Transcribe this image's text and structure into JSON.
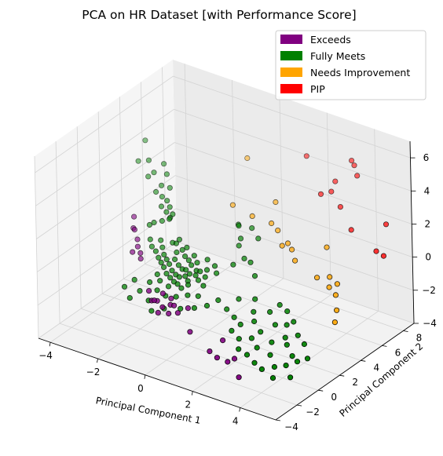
{
  "chart_data": {
    "type": "scatter3d",
    "title": "PCA on HR Dataset [with Performance Score]",
    "xlabel": "Principal Component 1",
    "ylabel": "Principal Component 2",
    "zlabel": "",
    "xlim": [
      -4.5,
      5.5
    ],
    "ylim": [
      -4,
      9
    ],
    "zlim": [
      -4,
      7
    ],
    "xticks": [
      "−4",
      "−2",
      "0",
      "2",
      "4"
    ],
    "yticks": [
      "−4",
      "−2",
      "0",
      "2",
      "4",
      "6",
      "8"
    ],
    "zticks": [
      "−4",
      "−2",
      "0",
      "2",
      "4",
      "6"
    ],
    "grid": true,
    "legend": "top-right",
    "series": [
      {
        "name": "Exceeds",
        "color": "#800080",
        "points": [
          [
            -4.0,
            4.0,
            0.0
          ],
          [
            -3.9,
            3.7,
            -0.5
          ],
          [
            -3.8,
            3.6,
            -0.5
          ],
          [
            -3.6,
            3.4,
            -0.9
          ],
          [
            -3.5,
            3.2,
            -1.2
          ],
          [
            -3.3,
            3.0,
            -1.4
          ],
          [
            -3.2,
            2.8,
            -1.6
          ],
          [
            -3.5,
            2.7,
            -1.3
          ],
          [
            -1.6,
            0.0,
            -1.5
          ],
          [
            -1.4,
            -0.2,
            -1.9
          ],
          [
            -1.2,
            -0.4,
            -1.7
          ],
          [
            -1.0,
            -0.5,
            -2.3
          ],
          [
            -0.9,
            -0.3,
            -2.0
          ],
          [
            -0.7,
            0.0,
            -1.9
          ],
          [
            -0.5,
            -0.1,
            -1.8
          ],
          [
            -1.1,
            0.2,
            -1.5
          ],
          [
            -0.8,
            0.3,
            -1.7
          ],
          [
            -0.6,
            -0.4,
            -2.2
          ],
          [
            0.2,
            -0.2,
            -3.0
          ],
          [
            1.4,
            0.2,
            -3.1
          ],
          [
            1.2,
            -0.6,
            -3.5
          ],
          [
            1.6,
            -0.8,
            -3.6
          ],
          [
            2.0,
            -0.7,
            -3.7
          ],
          [
            2.2,
            -0.5,
            -3.5
          ],
          [
            2.6,
            -1.0,
            -4.2
          ],
          [
            -0.3,
            -0.2,
            -2.1
          ],
          [
            -1.3,
            0.1,
            -2.0
          ],
          [
            0.0,
            0.1,
            -1.8
          ]
        ]
      },
      {
        "name": "Fully Meets",
        "color": "#008000",
        "points": [
          [
            -4.6,
            6.5,
            3.2
          ],
          [
            -4.5,
            5.6,
            2.4
          ],
          [
            -4.1,
            5.7,
            2.6
          ],
          [
            -4.0,
            5.4,
            1.8
          ],
          [
            -3.8,
            5.5,
            2.1
          ],
          [
            -3.6,
            6.0,
            2.5
          ],
          [
            -3.4,
            5.3,
            1.6
          ],
          [
            -3.3,
            5.6,
            2.2
          ],
          [
            -3.5,
            5.0,
            1.3
          ],
          [
            -3.2,
            4.9,
            1.2
          ],
          [
            -3.0,
            5.2,
            1.7
          ],
          [
            -3.1,
            4.6,
            0.8
          ],
          [
            -2.9,
            4.7,
            1.2
          ],
          [
            -2.8,
            4.4,
            0.7
          ],
          [
            -2.7,
            4.5,
            1.0
          ],
          [
            -2.9,
            4.2,
            0.2
          ],
          [
            -2.6,
            4.3,
            0.5
          ],
          [
            -3.2,
            4.1,
            0.0
          ],
          [
            -3.3,
            3.9,
            -0.1
          ],
          [
            -2.5,
            4.0,
            0.6
          ],
          [
            -2.4,
            4.1,
            0.9
          ],
          [
            -2.2,
            3.6,
            -0.5
          ],
          [
            -2.0,
            3.5,
            -0.4
          ],
          [
            -1.9,
            3.3,
            -0.8
          ],
          [
            -1.7,
            3.4,
            -0.6
          ],
          [
            -1.5,
            3.2,
            -0.8
          ],
          [
            -1.3,
            3.1,
            -0.9
          ],
          [
            -1.8,
            2.9,
            -1.0
          ],
          [
            -1.6,
            2.8,
            -1.2
          ],
          [
            -1.4,
            2.7,
            -1.3
          ],
          [
            -1.2,
            2.6,
            -1.2
          ],
          [
            -1.1,
            2.9,
            -1.0
          ],
          [
            -2.1,
            2.8,
            -1.1
          ],
          [
            -2.3,
            3.0,
            -1.0
          ],
          [
            -0.9,
            3.0,
            -0.8
          ],
          [
            -0.8,
            2.7,
            -1.1
          ],
          [
            -1.0,
            2.5,
            -1.3
          ],
          [
            -1.9,
            2.6,
            -1.2
          ],
          [
            -1.7,
            2.4,
            -1.4
          ],
          [
            -1.5,
            2.3,
            -1.5
          ],
          [
            -1.3,
            2.2,
            -1.5
          ],
          [
            -1.1,
            2.3,
            -1.4
          ],
          [
            -2.0,
            2.3,
            -1.3
          ],
          [
            -2.2,
            2.5,
            -1.2
          ],
          [
            -0.7,
            2.4,
            -1.2
          ],
          [
            -0.9,
            2.1,
            -1.5
          ],
          [
            -1.6,
            2.0,
            -1.6
          ],
          [
            -1.4,
            1.9,
            -1.7
          ],
          [
            -1.2,
            1.8,
            -1.7
          ],
          [
            -1.8,
            2.1,
            -1.5
          ],
          [
            -2.4,
            2.7,
            -1.1
          ],
          [
            -2.6,
            2.9,
            -0.9
          ],
          [
            -0.6,
            2.6,
            -1.0
          ],
          [
            -0.5,
            2.2,
            -1.3
          ],
          [
            -1.0,
            1.7,
            -1.8
          ],
          [
            -0.8,
            1.9,
            -1.6
          ],
          [
            -2.1,
            1.9,
            -1.6
          ],
          [
            -1.5,
            1.6,
            -1.9
          ],
          [
            -1.9,
            1.7,
            -1.8
          ],
          [
            -0.3,
            2.4,
            -1.1
          ],
          [
            -0.4,
            2.8,
            -0.9
          ],
          [
            -0.2,
            2.0,
            -1.4
          ],
          [
            -1.2,
            3.4,
            -0.7
          ],
          [
            -1.6,
            3.6,
            -0.5
          ],
          [
            -2.0,
            3.8,
            -0.3
          ],
          [
            -2.5,
            3.3,
            -0.8
          ],
          [
            -2.7,
            3.6,
            -0.6
          ],
          [
            -2.9,
            3.2,
            -0.9
          ],
          [
            -3.1,
            3.5,
            -0.7
          ],
          [
            -0.6,
            3.3,
            -0.6
          ],
          [
            -0.2,
            3.1,
            -0.7
          ],
          [
            0.0,
            2.8,
            -0.9
          ],
          [
            -1.8,
            1.2,
            -2.1
          ],
          [
            -1.4,
            1.1,
            -2.2
          ],
          [
            -1.0,
            1.2,
            -2.1
          ],
          [
            -0.6,
            1.4,
            -1.9
          ],
          [
            -0.2,
            1.5,
            -1.8
          ],
          [
            -2.2,
            1.4,
            -1.9
          ],
          [
            -2.8,
            1.3,
            -2.0
          ],
          [
            -2.4,
            0.9,
            -2.3
          ],
          [
            -1.9,
            0.6,
            -2.5
          ],
          [
            -1.2,
            0.5,
            -2.6
          ],
          [
            -0.6,
            0.7,
            -2.4
          ],
          [
            -0.1,
            0.9,
            -2.2
          ],
          [
            -2.6,
            0.4,
            -2.6
          ],
          [
            -3.0,
            0.8,
            -2.3
          ],
          [
            -1.6,
            0.2,
            -2.8
          ],
          [
            0.3,
            1.2,
            -2.0
          ],
          [
            0.6,
            1.6,
            -1.7
          ],
          [
            -0.4,
            5.8,
            0.5
          ],
          [
            -0.2,
            5.4,
            0.7
          ],
          [
            0.4,
            5.3,
            0.9
          ],
          [
            0.8,
            5.0,
            0.6
          ],
          [
            0.2,
            4.5,
            0.1
          ],
          [
            0.6,
            4.1,
            -0.3
          ],
          [
            1.0,
            3.8,
            -0.2
          ],
          [
            0.4,
            3.5,
            -0.5
          ],
          [
            1.4,
            3.3,
            -0.6
          ],
          [
            0.1,
            4.9,
            0.3
          ],
          [
            1.0,
            1.5,
            -2.0
          ],
          [
            1.4,
            1.3,
            -2.2
          ],
          [
            1.8,
            1.0,
            -2.3
          ],
          [
            2.2,
            1.4,
            -2.1
          ],
          [
            2.6,
            1.1,
            -2.4
          ],
          [
            3.0,
            1.6,
            -2.0
          ],
          [
            1.6,
            0.6,
            -2.6
          ],
          [
            2.0,
            0.4,
            -2.8
          ],
          [
            2.4,
            0.7,
            -2.7
          ],
          [
            2.8,
            0.3,
            -2.9
          ],
          [
            3.2,
            0.8,
            -2.6
          ],
          [
            3.6,
            1.2,
            -2.3
          ],
          [
            4.0,
            1.5,
            -2.1
          ],
          [
            3.8,
            0.9,
            -2.5
          ],
          [
            4.2,
            0.5,
            -2.8
          ],
          [
            3.4,
            0.2,
            -3.0
          ],
          [
            2.6,
            -0.2,
            -3.2
          ],
          [
            3.0,
            -0.4,
            -3.4
          ],
          [
            3.4,
            -0.6,
            -3.5
          ],
          [
            3.8,
            -0.3,
            -3.3
          ],
          [
            4.2,
            -0.1,
            -3.1
          ],
          [
            4.5,
            0.3,
            -2.9
          ],
          [
            4.8,
            0.6,
            -2.7
          ],
          [
            2.2,
            -0.1,
            -3.1
          ],
          [
            2.0,
            1.8,
            -1.8
          ],
          [
            2.6,
            2.0,
            -1.6
          ],
          [
            3.2,
            2.3,
            -1.4
          ],
          [
            3.6,
            2.0,
            -1.7
          ],
          [
            4.4,
            1.2,
            -2.3
          ],
          [
            4.6,
            -0.6,
            -3.4
          ],
          [
            4.0,
            -0.9,
            -3.6
          ],
          [
            3.4,
            1.8,
            -1.9
          ],
          [
            2.8,
            2.5,
            -1.3
          ],
          [
            1.8,
            2.4,
            -1.4
          ],
          [
            1.2,
            2.2,
            -1.6
          ]
        ]
      },
      {
        "name": "Needs Improvement",
        "color": "#ffa500",
        "points": [
          [
            -1.2,
            8.5,
            2.9
          ],
          [
            0.7,
            6.9,
            1.9
          ],
          [
            0.2,
            5.8,
            1.3
          ],
          [
            1.1,
            5.6,
            1.4
          ],
          [
            1.5,
            5.3,
            1.3
          ],
          [
            1.9,
            4.8,
            0.8
          ],
          [
            2.1,
            4.9,
            1.0
          ],
          [
            2.4,
            4.6,
            0.9
          ],
          [
            2.8,
            4.0,
            0.7
          ],
          [
            3.7,
            5.0,
            1.5
          ],
          [
            3.9,
            3.6,
            0.4
          ],
          [
            4.3,
            3.9,
            0.5
          ],
          [
            4.5,
            3.4,
            0.2
          ],
          [
            4.8,
            3.5,
            0.5
          ],
          [
            5.0,
            2.9,
            0.2
          ],
          [
            5.3,
            2.3,
            -0.3
          ],
          [
            5.4,
            1.9,
            -0.8
          ],
          [
            -0.8,
            6.2,
            1.3
          ]
        ]
      },
      {
        "name": "PIP",
        "color": "#ff0000",
        "points": [
          [
            1.0,
            9.2,
            3.8
          ],
          [
            3.0,
            9.0,
            4.6
          ],
          [
            3.2,
            8.8,
            4.5
          ],
          [
            3.5,
            8.4,
            4.2
          ],
          [
            2.7,
            8.1,
            3.6
          ],
          [
            2.4,
            7.4,
            3.0
          ],
          [
            2.8,
            7.5,
            3.3
          ],
          [
            3.4,
            7.0,
            2.9
          ],
          [
            4.3,
            6.0,
            2.4
          ],
          [
            5.6,
            6.4,
            3.2
          ],
          [
            5.8,
            5.0,
            2.3
          ],
          [
            6.2,
            4.8,
            2.3
          ]
        ]
      }
    ]
  }
}
